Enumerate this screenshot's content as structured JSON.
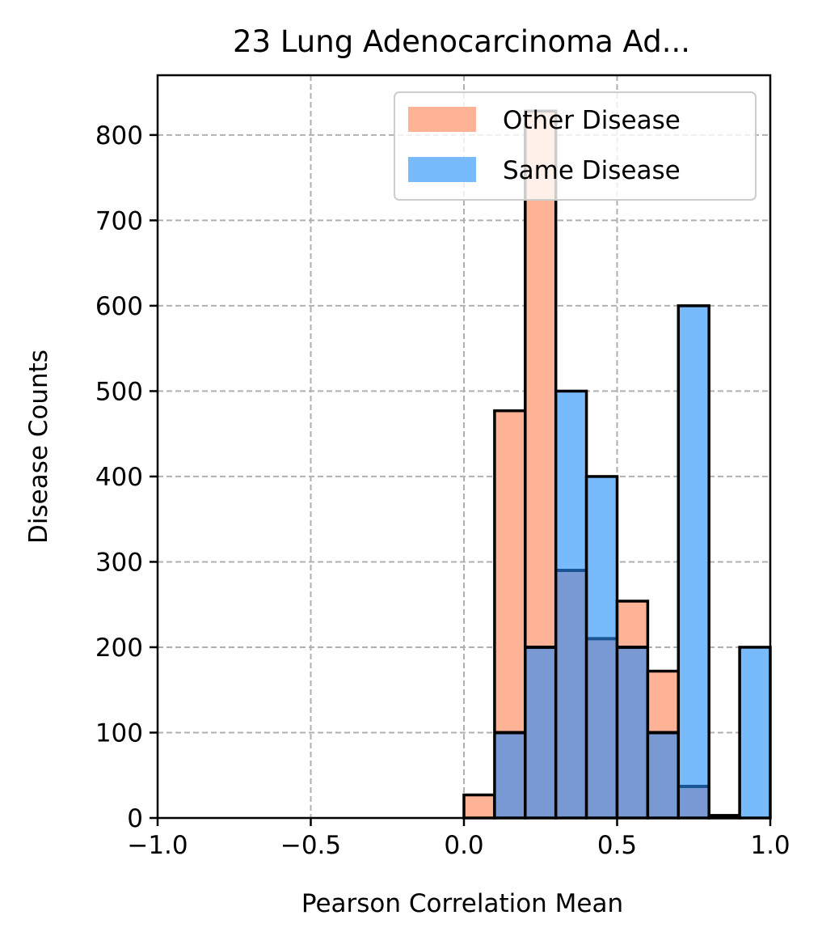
{
  "chart_data": {
    "type": "histogram",
    "title": "23 Lung Adenocarcinoma Ad...",
    "xlabel": "Pearson Correlation Mean",
    "ylabel": "Disease Counts",
    "xlim": [
      -1.0,
      1.0
    ],
    "ylim": [
      0,
      870
    ],
    "xticks": [
      -1.0,
      -0.5,
      0.0,
      0.5,
      1.0
    ],
    "xtick_labels": [
      "−1.0",
      "−0.5",
      "0.0",
      "0.5",
      "1.0"
    ],
    "yticks": [
      0,
      100,
      200,
      300,
      400,
      500,
      600,
      700,
      800
    ],
    "ytick_labels": [
      "0",
      "100",
      "200",
      "300",
      "400",
      "500",
      "600",
      "700",
      "800"
    ],
    "grid": true,
    "legend_position": "top-right",
    "bins": [
      0.0,
      0.1,
      0.2,
      0.3,
      0.4,
      0.5,
      0.6,
      0.7,
      0.8,
      0.9,
      1.0
    ],
    "series": [
      {
        "name": "Other Disease",
        "color": "#ffb396",
        "values": [
          27,
          477,
          828,
          290,
          210,
          254,
          172,
          37,
          3,
          0
        ]
      },
      {
        "name": "Same Disease",
        "color": "#77bbfc",
        "values": [
          0,
          100,
          200,
          500,
          400,
          200,
          100,
          600,
          0,
          200
        ]
      }
    ],
    "overlap_color": "#7899d4",
    "edge_color": "#000000",
    "overlap_edge_color": "#1a5596"
  }
}
